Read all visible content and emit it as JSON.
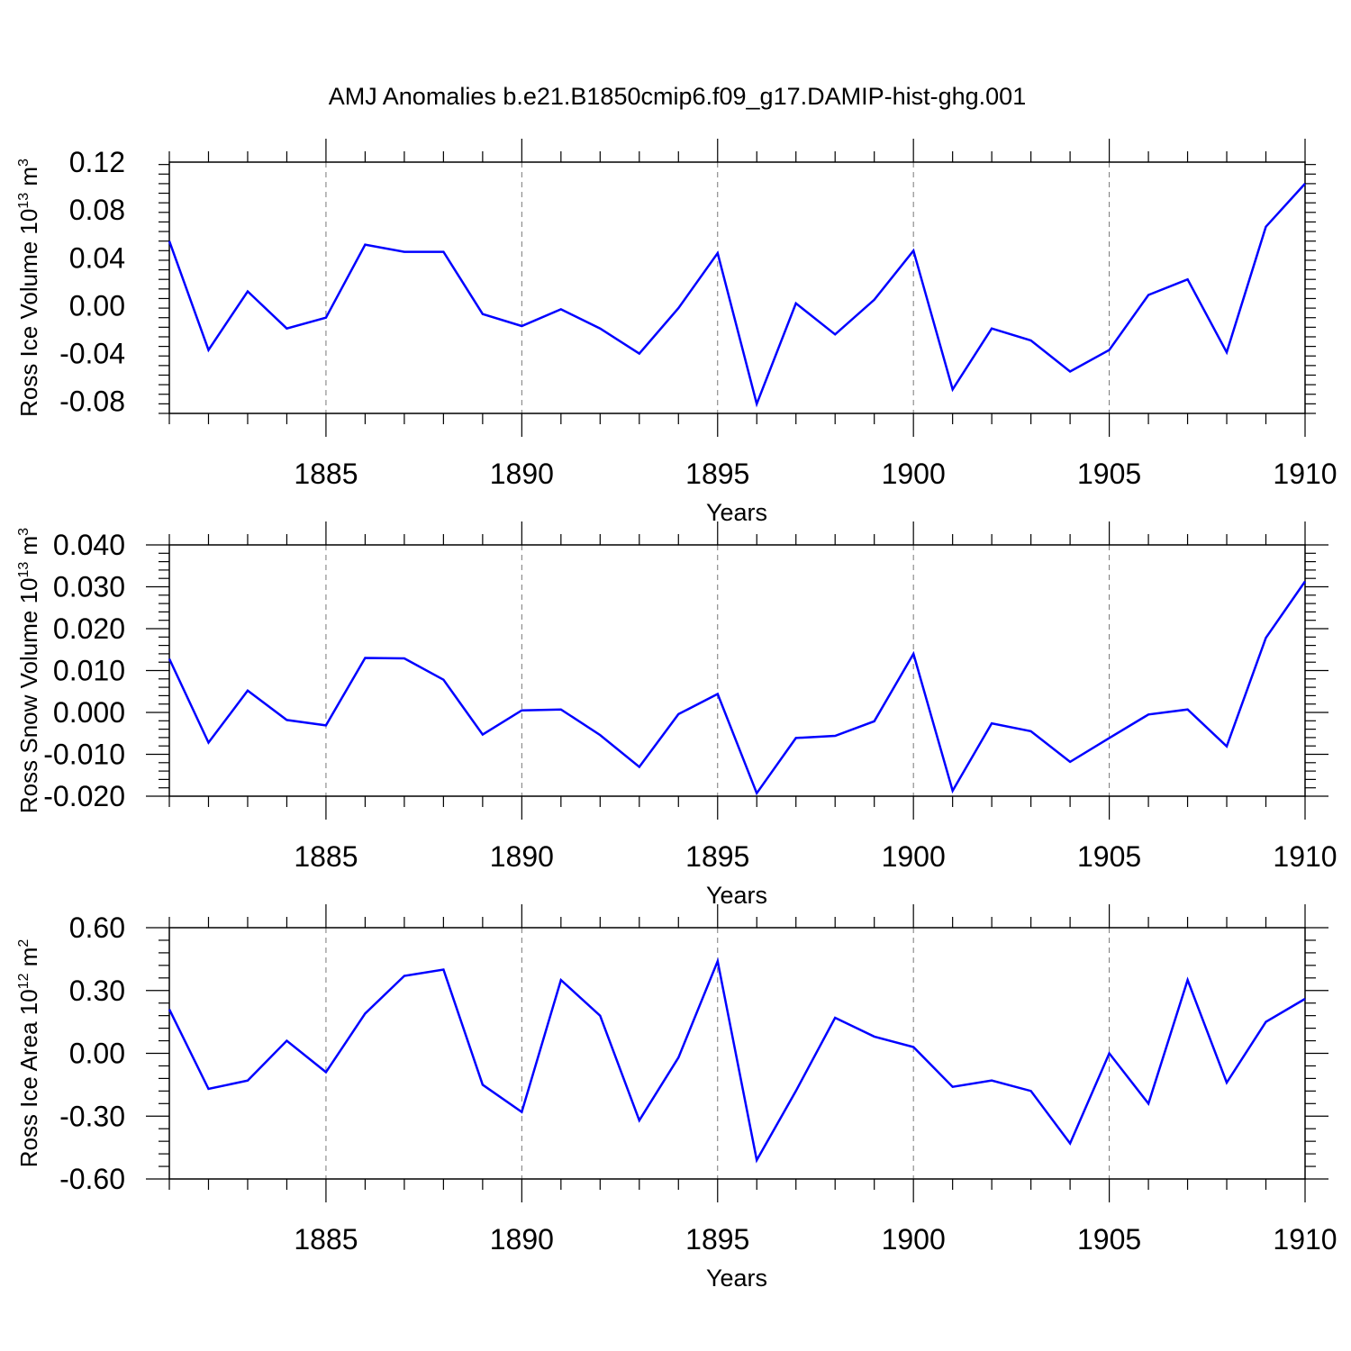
{
  "title": "AMJ Anomalies b.e21.B1850cmip6.f09_g17.DAMIP-hist-ghg.001",
  "colors": {
    "series": "#0000ff",
    "axis": "#000000",
    "grid": "#777777"
  },
  "chart_data": [
    {
      "type": "line",
      "title": "AMJ Anomalies b.e21.B1850cmip6.f09_g17.DAMIP-hist-ghg.001",
      "xlabel": "Years",
      "ylabel": {
        "text": "Ross Ice Volume 10",
        "exp": "13",
        "unit": " m",
        "unit_exp": "3"
      },
      "xlim": [
        1881,
        1910
      ],
      "ylim": [
        -0.09,
        0.12
      ],
      "xticks": [
        "1885",
        "1890",
        "1895",
        "1900",
        "1905",
        "1910"
      ],
      "yticks": [
        "0.12",
        "0.08",
        "0.04",
        "0.00",
        "-0.04",
        "-0.08"
      ],
      "grid": "vertical dashed at major x ticks",
      "x": [
        1881,
        1882,
        1883,
        1884,
        1885,
        1886,
        1887,
        1888,
        1889,
        1890,
        1891,
        1892,
        1893,
        1894,
        1895,
        1896,
        1897,
        1898,
        1899,
        1900,
        1901,
        1902,
        1903,
        1904,
        1905,
        1906,
        1907,
        1908,
        1909,
        1910
      ],
      "values": [
        0.054,
        -0.037,
        0.012,
        -0.019,
        -0.01,
        0.051,
        0.045,
        0.045,
        -0.007,
        -0.017,
        -0.003,
        -0.019,
        -0.04,
        -0.002,
        0.044,
        -0.082,
        0.002,
        -0.024,
        0.005,
        0.046,
        -0.07,
        -0.019,
        -0.029,
        -0.055,
        -0.037,
        0.009,
        0.022,
        -0.039,
        0.066,
        0.102
      ]
    },
    {
      "type": "line",
      "xlabel": "Years",
      "ylabel": {
        "text": "Ross Snow Volume 10",
        "exp": "13",
        "unit": " m",
        "unit_exp": "3"
      },
      "xlim": [
        1881,
        1910
      ],
      "ylim": [
        -0.02,
        0.04
      ],
      "xticks": [
        "1885",
        "1890",
        "1895",
        "1900",
        "1905",
        "1910"
      ],
      "yticks": [
        "0.040",
        "0.030",
        "0.020",
        "0.010",
        "0.000",
        "-0.010",
        "-0.020"
      ],
      "grid": "vertical dashed at major x ticks",
      "x": [
        1881,
        1882,
        1883,
        1884,
        1885,
        1886,
        1887,
        1888,
        1889,
        1890,
        1891,
        1892,
        1893,
        1894,
        1895,
        1896,
        1897,
        1898,
        1899,
        1900,
        1901,
        1902,
        1903,
        1904,
        1905,
        1906,
        1907,
        1908,
        1909,
        1910
      ],
      "values": [
        0.0128,
        -0.0072,
        0.0052,
        -0.0018,
        -0.0031,
        0.013,
        0.0129,
        0.0078,
        -0.0053,
        0.0005,
        0.0007,
        -0.0054,
        -0.013,
        -0.0004,
        0.0044,
        -0.0193,
        -0.0061,
        -0.0056,
        -0.0021,
        0.014,
        -0.0187,
        -0.0026,
        -0.0045,
        -0.0118,
        -0.0061,
        -0.0005,
        0.0007,
        -0.0081,
        0.0178,
        0.0313
      ]
    },
    {
      "type": "line",
      "xlabel": "Years",
      "ylabel": {
        "text": "Ross Ice Area 10",
        "exp": "12",
        "unit": " m",
        "unit_exp": "2"
      },
      "xlim": [
        1881,
        1910
      ],
      "ylim": [
        -0.6,
        0.6
      ],
      "xticks": [
        "1885",
        "1890",
        "1895",
        "1900",
        "1905",
        "1910"
      ],
      "yticks": [
        "0.60",
        "0.30",
        "0.00",
        "-0.30",
        "-0.60"
      ],
      "grid": "vertical dashed at major x ticks",
      "x": [
        1881,
        1882,
        1883,
        1884,
        1885,
        1886,
        1887,
        1888,
        1889,
        1890,
        1891,
        1892,
        1893,
        1894,
        1895,
        1896,
        1897,
        1898,
        1899,
        1900,
        1901,
        1902,
        1903,
        1904,
        1905,
        1906,
        1907,
        1908,
        1909,
        1910
      ],
      "values": [
        0.21,
        -0.17,
        -0.13,
        0.06,
        -0.09,
        0.19,
        0.37,
        0.4,
        -0.15,
        -0.28,
        0.35,
        0.18,
        -0.32,
        -0.02,
        0.44,
        -0.51,
        -0.18,
        0.17,
        0.08,
        0.03,
        -0.16,
        -0.13,
        -0.18,
        -0.43,
        0.0,
        -0.24,
        0.35,
        -0.14,
        0.15,
        0.26
      ]
    }
  ]
}
